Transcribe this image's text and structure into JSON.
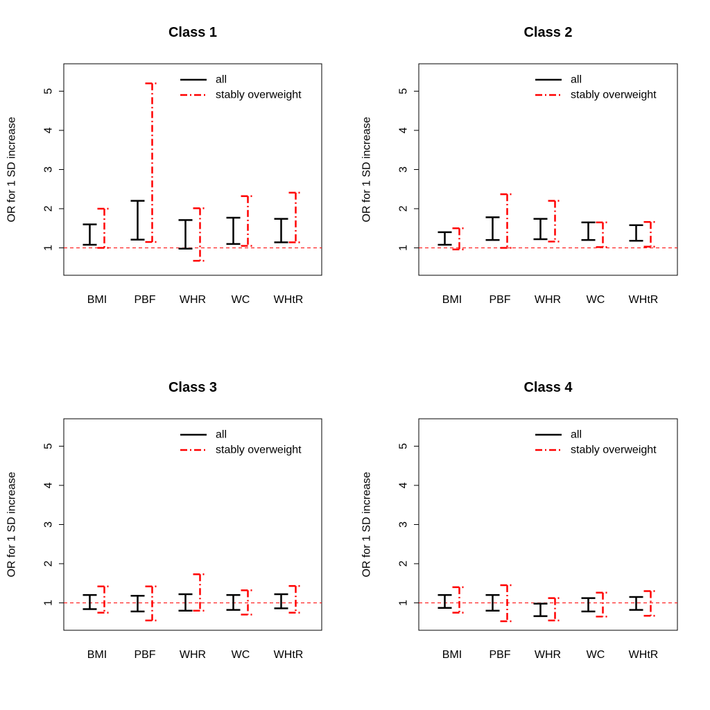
{
  "colors": {
    "all": "#000000",
    "stably_overweight": "#ff0000",
    "reference_line": "#ff0000"
  },
  "chart_data": [
    {
      "type": "errorbar",
      "title": "Class 1",
      "xlabel": "",
      "ylabel": "OR for 1 SD increase",
      "ylim": [
        0.3,
        5.7
      ],
      "yticks": [
        "1",
        "2",
        "3",
        "4",
        "5"
      ],
      "reference_y": 1,
      "legend_position": "top-right",
      "categories": [
        "BMI",
        "PBF",
        "WHR",
        "WC",
        "WHtR"
      ],
      "series": [
        {
          "name": "all",
          "lower": [
            1.08,
            1.21,
            0.98,
            1.1,
            1.14
          ],
          "upper": [
            1.6,
            2.2,
            1.71,
            1.77,
            1.74
          ]
        },
        {
          "name": "stably overweight",
          "lower": [
            1.0,
            1.15,
            0.67,
            1.05,
            1.14
          ],
          "upper": [
            2.0,
            5.2,
            2.01,
            2.32,
            2.41
          ]
        }
      ]
    },
    {
      "type": "errorbar",
      "title": "Class 2",
      "xlabel": "",
      "ylabel": "OR for 1 SD increase",
      "ylim": [
        0.3,
        5.7
      ],
      "yticks": [
        "1",
        "2",
        "3",
        "4",
        "5"
      ],
      "reference_y": 1,
      "legend_position": "top-right",
      "categories": [
        "BMI",
        "PBF",
        "WHR",
        "WC",
        "WHtR"
      ],
      "series": [
        {
          "name": "all",
          "lower": [
            1.08,
            1.2,
            1.22,
            1.2,
            1.18
          ],
          "upper": [
            1.4,
            1.78,
            1.74,
            1.65,
            1.58
          ]
        },
        {
          "name": "stably overweight",
          "lower": [
            0.96,
            1.0,
            1.16,
            1.02,
            1.03
          ],
          "upper": [
            1.5,
            2.37,
            2.2,
            1.65,
            1.66
          ]
        }
      ]
    },
    {
      "type": "errorbar",
      "title": "Class 3",
      "xlabel": "",
      "ylabel": "OR for 1 SD increase",
      "ylim": [
        0.3,
        5.7
      ],
      "yticks": [
        "1",
        "2",
        "3",
        "4",
        "5"
      ],
      "reference_y": 1,
      "legend_position": "top-right",
      "categories": [
        "BMI",
        "PBF",
        "WHR",
        "WC",
        "WHtR"
      ],
      "series": [
        {
          "name": "all",
          "lower": [
            0.84,
            0.78,
            0.8,
            0.82,
            0.86
          ],
          "upper": [
            1.2,
            1.18,
            1.22,
            1.2,
            1.22
          ]
        },
        {
          "name": "stably overweight",
          "lower": [
            0.75,
            0.55,
            0.8,
            0.7,
            0.75
          ],
          "upper": [
            1.42,
            1.42,
            1.73,
            1.32,
            1.43
          ]
        }
      ]
    },
    {
      "type": "errorbar",
      "title": "Class 4",
      "xlabel": "",
      "ylabel": "OR for 1 SD increase",
      "ylim": [
        0.3,
        5.7
      ],
      "yticks": [
        "1",
        "2",
        "3",
        "4",
        "5"
      ],
      "reference_y": 1,
      "legend_position": "top-right",
      "categories": [
        "BMI",
        "PBF",
        "WHR",
        "WC",
        "WHtR"
      ],
      "series": [
        {
          "name": "all",
          "lower": [
            0.87,
            0.8,
            0.66,
            0.78,
            0.82
          ],
          "upper": [
            1.2,
            1.2,
            0.98,
            1.12,
            1.15
          ]
        },
        {
          "name": "stably overweight",
          "lower": [
            0.75,
            0.53,
            0.55,
            0.65,
            0.67
          ],
          "upper": [
            1.4,
            1.45,
            1.12,
            1.26,
            1.3
          ]
        }
      ]
    }
  ]
}
